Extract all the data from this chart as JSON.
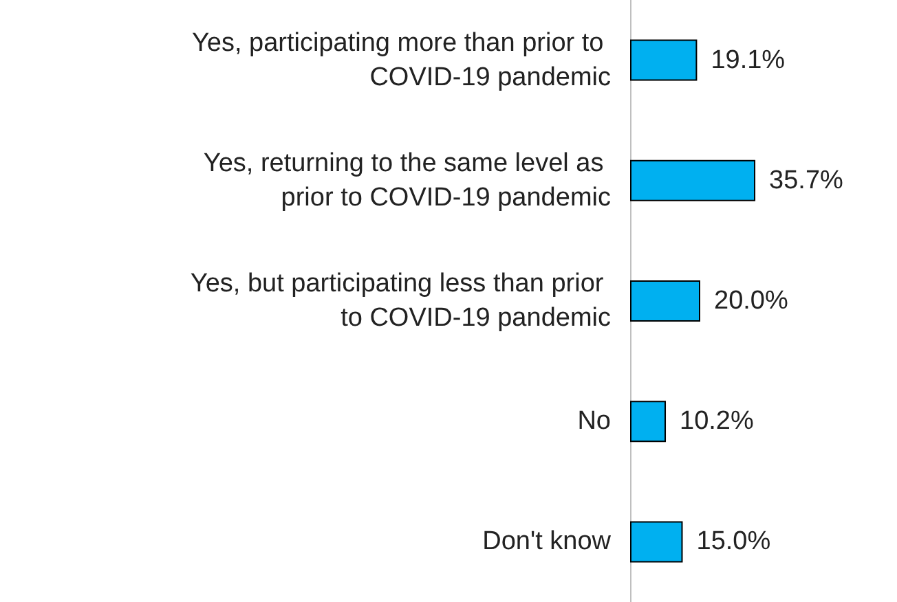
{
  "chart_data": {
    "type": "bar",
    "orientation": "horizontal",
    "categories": [
      "Yes, participating more than prior to COVID-19 pandemic",
      "Yes, returning to the same level as prior to COVID-19 pandemic",
      "Yes, but participating less than prior to COVID-19 pandemic",
      "No",
      "Don't know"
    ],
    "values": [
      19.1,
      35.7,
      20.0,
      10.2,
      15.0
    ],
    "value_labels": [
      "19.1%",
      "35.7%",
      "20.0%",
      "10.2%",
      "15.0%"
    ],
    "color": "#00b0f0"
  }
}
